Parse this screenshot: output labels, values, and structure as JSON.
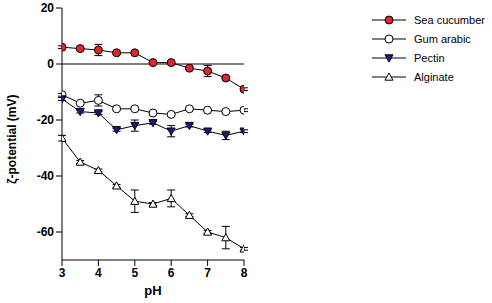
{
  "chart_data": {
    "type": "line",
    "xlabel": "pH",
    "ylabel": "ζ-potential (mV)",
    "x": [
      3,
      3.5,
      4,
      4.5,
      5,
      5.5,
      6,
      6.5,
      7,
      7.5,
      8
    ],
    "xlim": [
      3,
      8
    ],
    "xticks": [
      3,
      4,
      5,
      6,
      7,
      8
    ],
    "ylim": [
      -70,
      20
    ],
    "yticks": [
      -60,
      -40,
      -20,
      0,
      20
    ],
    "hlines": [
      0
    ],
    "grid": false,
    "legend": "right",
    "series": [
      {
        "name": "Sea cucumber",
        "color": "#e0262a",
        "marker": "circle",
        "values": [
          6,
          5.5,
          5,
          4,
          4,
          0.5,
          0.5,
          -1.5,
          -2.5,
          -5,
          -9
        ],
        "errors": [
          0.5,
          0.5,
          2,
          0.5,
          0.5,
          0.5,
          0.5,
          0.5,
          2,
          0.5,
          0.5
        ]
      },
      {
        "name": "Gum arabic",
        "color": "#ffffff",
        "marker": "circle",
        "values": [
          -11,
          -14,
          -13,
          -16,
          -16,
          -17.5,
          -18,
          -16,
          -16.5,
          -17,
          -16.5
        ],
        "errors": [
          0.5,
          0.5,
          2,
          0.5,
          0.5,
          0.5,
          0.5,
          0.5,
          0.5,
          0.5,
          0.5
        ]
      },
      {
        "name": "Pectin",
        "color": "#1a1a8c",
        "marker": "triangle-down",
        "values": [
          -12.5,
          -17,
          -17.5,
          -23.5,
          -22,
          -21,
          -24,
          -22,
          -24,
          -25.5,
          -24
        ],
        "errors": [
          0.5,
          0.5,
          0.5,
          0.5,
          2,
          0.5,
          2,
          0.5,
          0.5,
          1.5,
          0.5
        ]
      },
      {
        "name": "Alginate",
        "color": "#ffffff",
        "marker": "triangle-up",
        "values": [
          -26.5,
          -35,
          -38,
          -43.5,
          -49,
          -50,
          -48,
          -54,
          -60,
          -62,
          -66
        ],
        "errors": [
          1,
          0.5,
          0.5,
          0.5,
          4,
          0.5,
          3,
          0.5,
          0.5,
          4,
          0.5
        ]
      }
    ]
  }
}
